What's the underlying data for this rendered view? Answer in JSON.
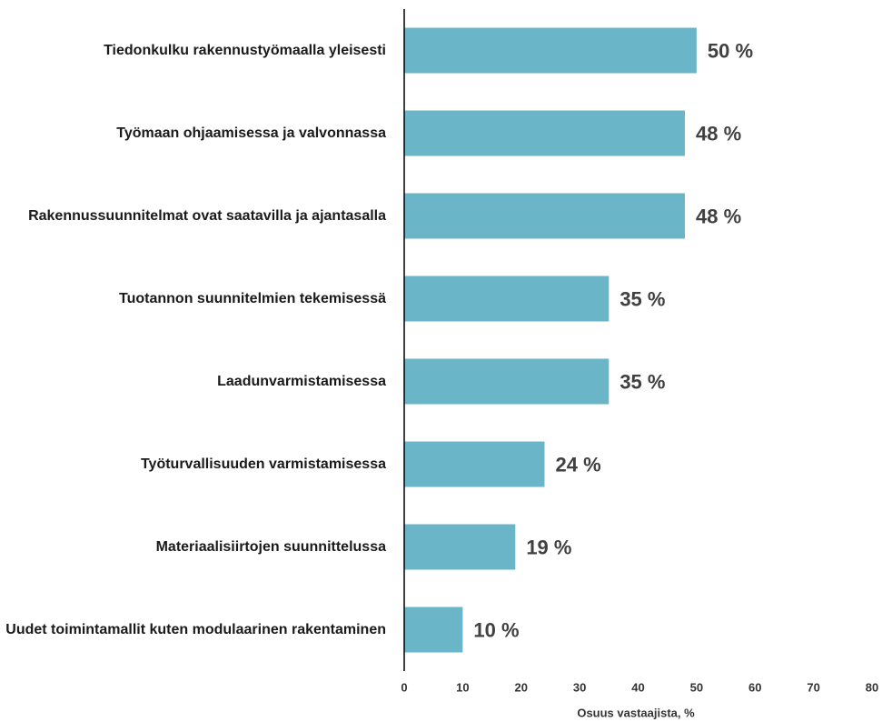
{
  "chart_data": {
    "type": "bar",
    "orientation": "horizontal",
    "categories": [
      "Tiedonkulku rakennustyömaalla yleisesti",
      "Työmaan ohjaamisessa ja valvonnassa",
      "Rakennussuunnitelmat ovat saatavilla ja ajantasalla",
      "Tuotannon suunnitelmien tekemisessä",
      "Laadunvarmistamisessa",
      "Työturvallisuuden varmistamisessa",
      "Materiaalisiirtojen suunnittelussa",
      "Uudet toimintamallit kuten modulaarinen rakentaminen"
    ],
    "values": [
      50,
      48,
      48,
      35,
      35,
      24,
      19,
      10
    ],
    "value_labels": [
      "50 %",
      "48 %",
      "48 %",
      "35 %",
      "35 %",
      "24 %",
      "19 %",
      "10 %"
    ],
    "color": "#6bb5c8",
    "xlabel": "Osuus vastaajista, %",
    "xlim": [
      0,
      80
    ],
    "xticks": [
      0,
      10,
      20,
      30,
      40,
      50,
      60,
      70,
      80
    ],
    "grid": false
  }
}
